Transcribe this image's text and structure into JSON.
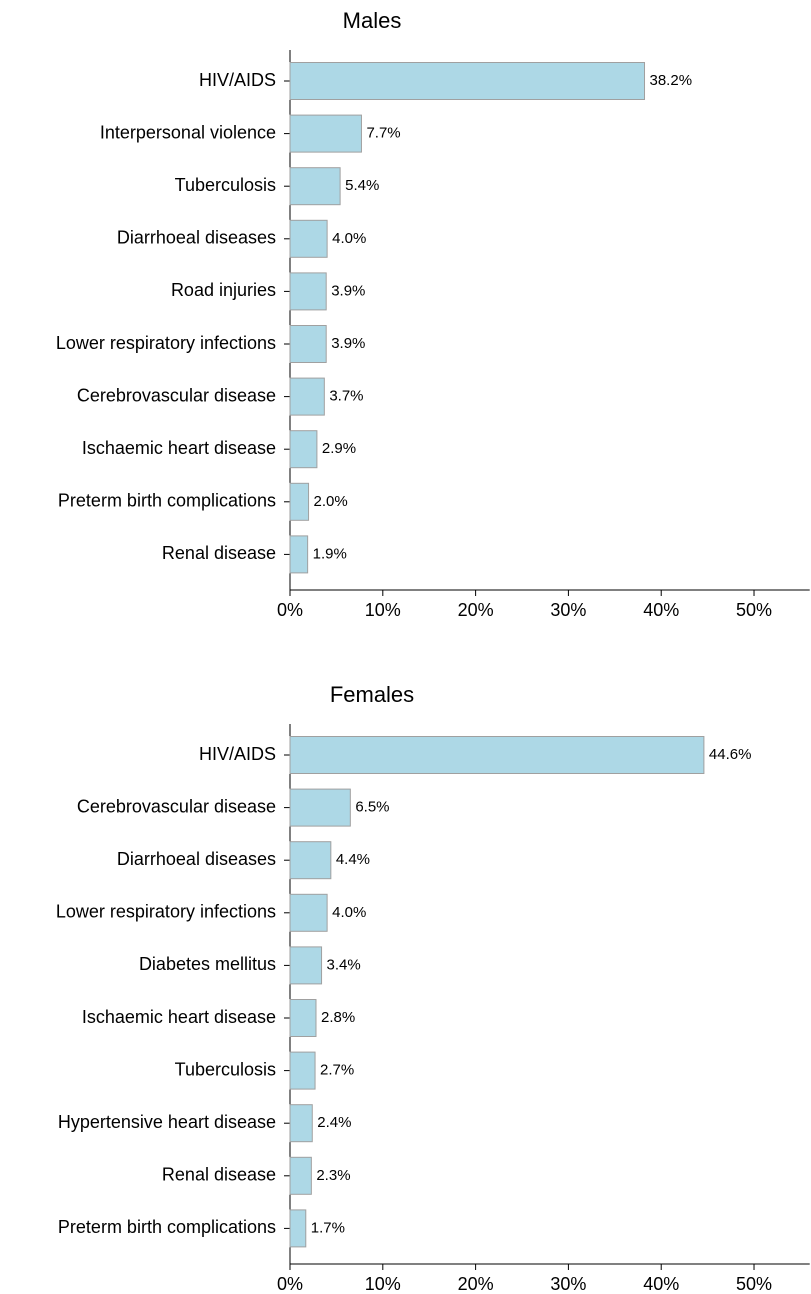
{
  "chart_data": [
    {
      "type": "barh",
      "title": "Males",
      "categories": [
        "HIV/AIDS",
        "Interpersonal violence",
        "Tuberculosis",
        "Diarrhoeal diseases",
        "Road injuries",
        "Lower respiratory infections",
        "Cerebrovascular disease",
        "Ischaemic heart disease",
        "Preterm birth complications",
        "Renal disease"
      ],
      "values": [
        38.2,
        7.7,
        5.4,
        4.0,
        3.9,
        3.9,
        3.7,
        2.9,
        2.0,
        1.9
      ],
      "value_labels": [
        "38.2%",
        "7.7%",
        "5.4%",
        "4.0%",
        "3.9%",
        "3.9%",
        "3.7%",
        "2.9%",
        "2.0%",
        "1.9%"
      ],
      "color": "#add8e6",
      "xlim": [
        0,
        56
      ],
      "xticks": [
        {
          "value": 0,
          "label": "0%"
        },
        {
          "value": 10,
          "label": "10%"
        },
        {
          "value": 20,
          "label": "20%"
        },
        {
          "value": 30,
          "label": "30%"
        },
        {
          "value": 40,
          "label": "40%"
        },
        {
          "value": 50,
          "label": "50%"
        }
      ]
    },
    {
      "type": "barh",
      "title": "Females",
      "categories": [
        "HIV/AIDS",
        "Cerebrovascular disease",
        "Diarrhoeal diseases",
        "Lower respiratory infections",
        "Diabetes mellitus",
        "Ischaemic heart disease",
        "Tuberculosis",
        "Hypertensive heart disease",
        "Renal disease",
        "Preterm birth complications"
      ],
      "values": [
        44.6,
        6.5,
        4.4,
        4.0,
        3.4,
        2.8,
        2.7,
        2.4,
        2.3,
        1.7
      ],
      "value_labels": [
        "44.6%",
        "6.5%",
        "4.4%",
        "4.0%",
        "3.4%",
        "2.8%",
        "2.7%",
        "2.4%",
        "2.3%",
        "1.7%"
      ],
      "color": "#add8e6",
      "xlim": [
        0,
        56
      ],
      "xticks": [
        {
          "value": 0,
          "label": "0%"
        },
        {
          "value": 10,
          "label": "10%"
        },
        {
          "value": 20,
          "label": "20%"
        },
        {
          "value": 30,
          "label": "30%"
        },
        {
          "value": 40,
          "label": "40%"
        },
        {
          "value": 50,
          "label": "50%"
        }
      ]
    }
  ]
}
